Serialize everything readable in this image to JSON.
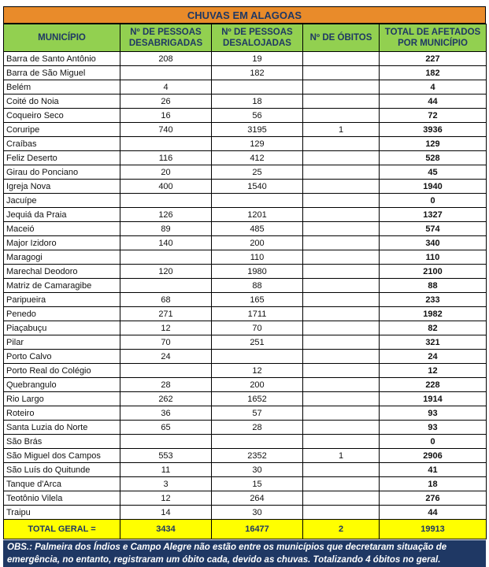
{
  "title": "CHUVAS EM ALAGOAS",
  "table": {
    "headers": [
      "MUNICÍPIO",
      "Nº DE PESSOAS DESABRIGADAS",
      "Nº DE PESSOAS DESALOJADAS",
      "Nº DE ÓBITOS",
      "TOTAL DE AFETADOS POR MUNICÍPIO"
    ],
    "rows": [
      [
        "Barra de Santo Antônio",
        208,
        19,
        null,
        227
      ],
      [
        "Barra de São Miguel",
        null,
        182,
        null,
        182
      ],
      [
        "Belém",
        4,
        null,
        null,
        4
      ],
      [
        "Coité do Noia",
        26,
        18,
        null,
        44
      ],
      [
        "Coqueiro Seco",
        16,
        56,
        null,
        72
      ],
      [
        "Coruripe",
        740,
        3195,
        1,
        3936
      ],
      [
        "Craíbas",
        null,
        129,
        null,
        129
      ],
      [
        "Feliz Deserto",
        116,
        412,
        null,
        528
      ],
      [
        "Girau do Ponciano",
        20,
        25,
        null,
        45
      ],
      [
        "Igreja Nova",
        400,
        1540,
        null,
        1940
      ],
      [
        "Jacuípe",
        null,
        null,
        null,
        0
      ],
      [
        "Jequiá da Praia",
        126,
        1201,
        null,
        1327
      ],
      [
        "Maceió",
        89,
        485,
        null,
        574
      ],
      [
        "Major Izidoro",
        140,
        200,
        null,
        340
      ],
      [
        "Maragogi",
        null,
        110,
        null,
        110
      ],
      [
        "Marechal Deodoro",
        120,
        1980,
        null,
        2100
      ],
      [
        "Matriz de Camaragibe",
        null,
        88,
        null,
        88
      ],
      [
        "Paripueira",
        68,
        165,
        null,
        233
      ],
      [
        "Penedo",
        271,
        1711,
        null,
        1982
      ],
      [
        "Piaçabuçu",
        12,
        70,
        null,
        82
      ],
      [
        "Pilar",
        70,
        251,
        null,
        321
      ],
      [
        "Porto Calvo",
        24,
        null,
        null,
        24
      ],
      [
        "Porto Real do Colégio",
        null,
        12,
        null,
        12
      ],
      [
        "Quebrangulo",
        28,
        200,
        null,
        228
      ],
      [
        "Rio Largo",
        262,
        1652,
        null,
        1914
      ],
      [
        "Roteiro",
        36,
        57,
        null,
        93
      ],
      [
        "Santa Luzia do Norte",
        65,
        28,
        null,
        93
      ],
      [
        "São Brás",
        null,
        null,
        null,
        0
      ],
      [
        "São Miguel dos Campos",
        553,
        2352,
        1,
        2906
      ],
      [
        "São Luís do Quitunde",
        11,
        30,
        null,
        41
      ],
      [
        "Tanque d'Arca",
        3,
        15,
        null,
        18
      ],
      [
        "Teotônio Vilela",
        12,
        264,
        null,
        276
      ],
      [
        "Traipu",
        14,
        30,
        null,
        44
      ]
    ],
    "total_row": [
      "TOTAL GERAL =",
      3434,
      16477,
      2,
      19913
    ]
  },
  "note": "OBS.: Palmeira dos Índios e Campo Alegre não estão entre os municípios que decretaram situação de emergência, no entanto, registraram um óbito cada, devido as chuvas. Totalizando 4 óbitos no geral."
}
